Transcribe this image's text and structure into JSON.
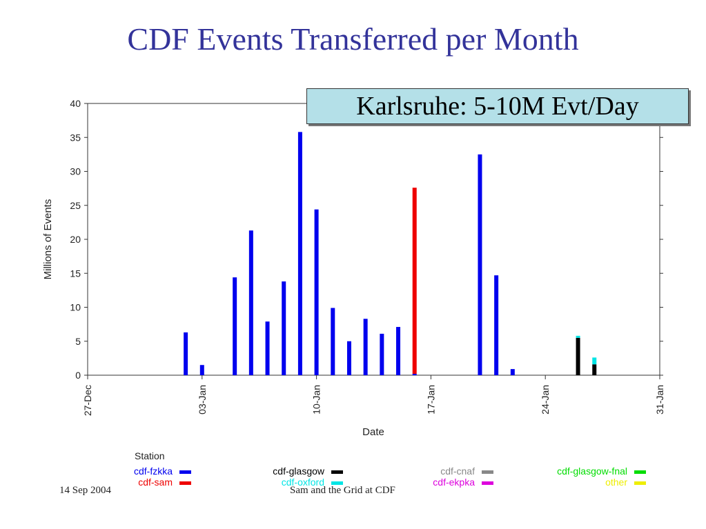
{
  "slide": {
    "title": "CDF Events Transferred per Month",
    "callout": "Karlsruhe: 5-10M Evt/Day",
    "footer_left": "14 Sep 2004",
    "footer_center": "Sam and the Grid at CDF"
  },
  "chart_data": {
    "type": "bar",
    "stacked": true,
    "title": "",
    "xlabel": "Date",
    "ylabel": "Millions of Events",
    "ylim": [
      0,
      40
    ],
    "yticks": [
      0,
      5,
      10,
      15,
      20,
      25,
      30,
      35,
      40
    ],
    "xlim": [
      "27-Dec",
      "31-Jan"
    ],
    "xticks": [
      "27-Dec",
      "03-Jan",
      "10-Jan",
      "17-Jan",
      "24-Jan",
      "31-Jan"
    ],
    "grid": false,
    "legend_title": "Station",
    "legend_position": "bottom",
    "series": [
      {
        "name": "cdf-fzkka",
        "color": "#0000ee",
        "points": [
          {
            "x": "2-Jan",
            "y": 6.3
          },
          {
            "x": "3-Jan",
            "y": 1.5
          },
          {
            "x": "5-Jan",
            "y": 14.4
          },
          {
            "x": "6-Jan",
            "y": 21.3
          },
          {
            "x": "7-Jan",
            "y": 7.9
          },
          {
            "x": "8-Jan",
            "y": 13.8
          },
          {
            "x": "9-Jan",
            "y": 35.8
          },
          {
            "x": "10-Jan",
            "y": 24.4
          },
          {
            "x": "11-Jan",
            "y": 9.9
          },
          {
            "x": "12-Jan",
            "y": 5.0
          },
          {
            "x": "13-Jan",
            "y": 8.3
          },
          {
            "x": "14-Jan",
            "y": 6.1
          },
          {
            "x": "15-Jan",
            "y": 7.1
          },
          {
            "x": "16-Jan",
            "y": 0.2
          },
          {
            "x": "20-Jan",
            "y": 32.5
          },
          {
            "x": "21-Jan",
            "y": 14.7
          },
          {
            "x": "22-Jan",
            "y": 0.9
          }
        ]
      },
      {
        "name": "cdf-sam",
        "color": "#ee0000",
        "points": [
          {
            "x": "16-Jan",
            "y": 27.4
          }
        ]
      },
      {
        "name": "cdf-glasgow",
        "color": "#000000",
        "points": [
          {
            "x": "26-Jan",
            "y": 5.5
          },
          {
            "x": "27-Jan",
            "y": 1.6
          }
        ]
      },
      {
        "name": "cdf-oxford",
        "color": "#00e5e5",
        "points": [
          {
            "x": "26-Jan",
            "y": 0.3
          },
          {
            "x": "27-Jan",
            "y": 1.0
          }
        ]
      },
      {
        "name": "cdf-cnaf",
        "color": "#888888",
        "points": []
      },
      {
        "name": "cdf-ekpka",
        "color": "#dd00dd",
        "points": []
      },
      {
        "name": "cdf-glasgow-fnal",
        "color": "#00dd00",
        "points": []
      },
      {
        "name": "other",
        "color": "#eeee00",
        "points": []
      }
    ]
  }
}
